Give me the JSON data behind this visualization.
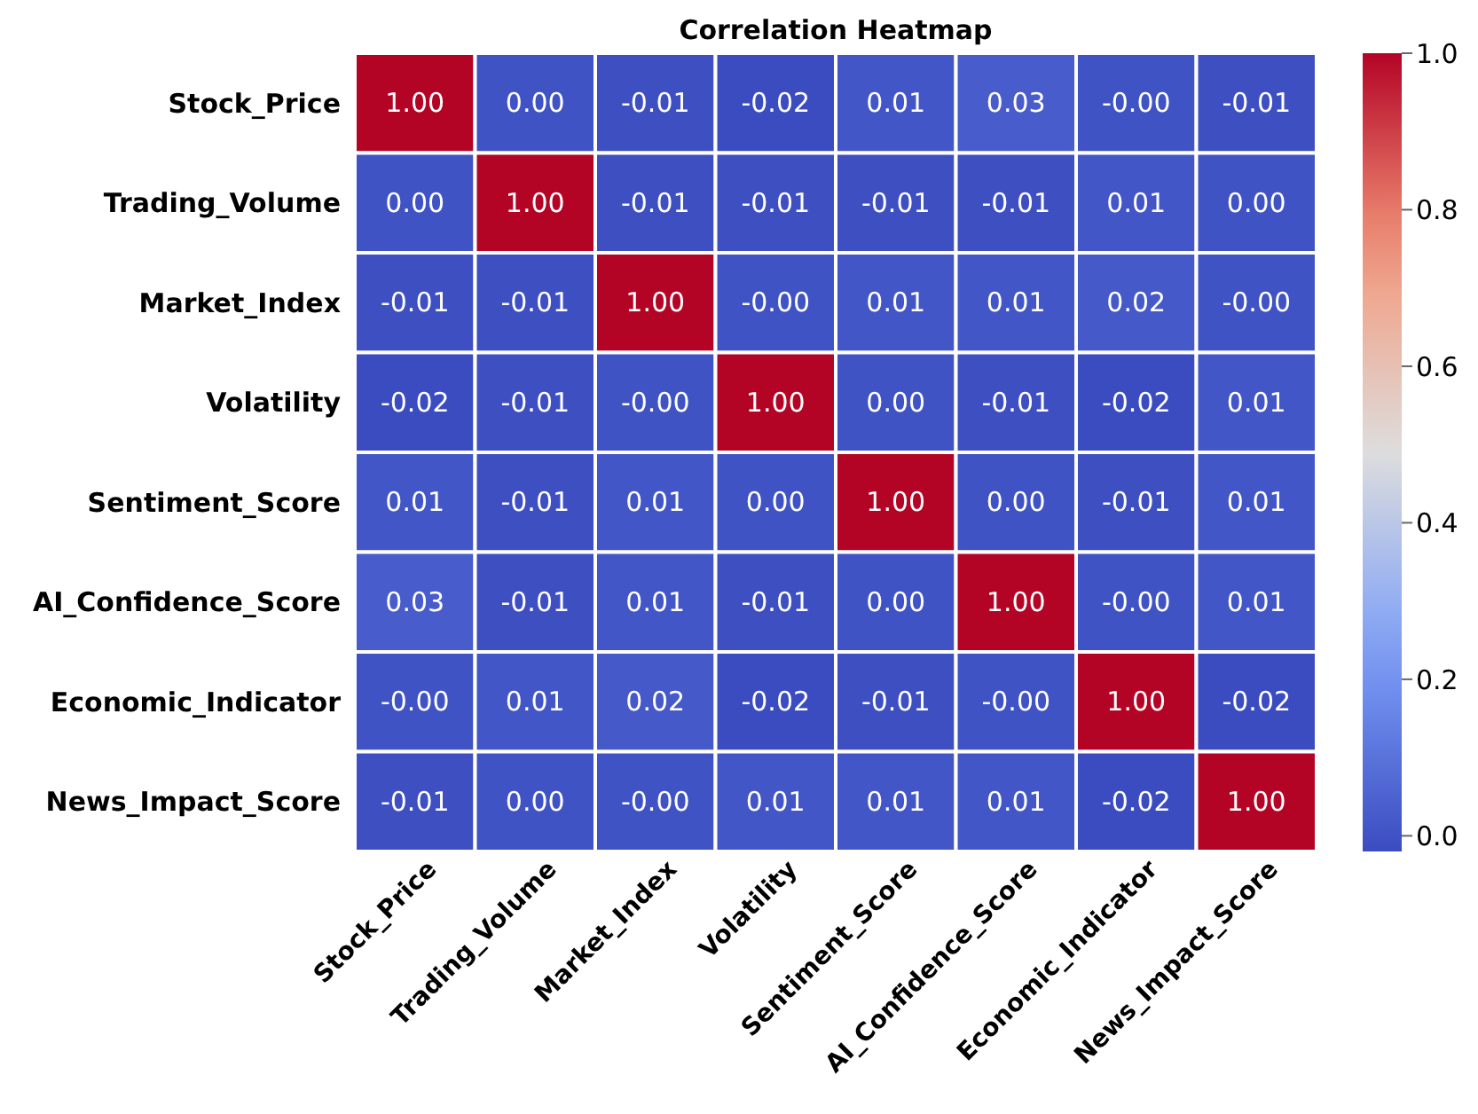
{
  "chart_data": {
    "type": "heatmap",
    "title": "Correlation Heatmap",
    "categories": [
      "Stock_Price",
      "Trading_Volume",
      "Market_Index",
      "Volatility",
      "Sentiment_Score",
      "AI_Confidence_Score",
      "Economic_Indicator",
      "News_Impact_Score"
    ],
    "y_categories": [
      "Stock_Price",
      "Trading_Volume",
      "Market_Index",
      "Volatility",
      "Sentiment_Score",
      "AI_Confidence_Score",
      "Economic_Indicator",
      "News_Impact_Score"
    ],
    "cells": [
      [
        1.0,
        0.0,
        -0.01,
        -0.02,
        0.01,
        0.03,
        0.0,
        -0.01
      ],
      [
        0.0,
        1.0,
        -0.01,
        -0.01,
        -0.01,
        -0.01,
        0.01,
        0.0
      ],
      [
        -0.01,
        -0.01,
        1.0,
        0.0,
        0.01,
        0.01,
        0.02,
        0.0
      ],
      [
        -0.02,
        -0.01,
        0.0,
        1.0,
        0.0,
        -0.01,
        -0.02,
        0.01
      ],
      [
        0.01,
        -0.01,
        0.01,
        0.0,
        1.0,
        0.0,
        -0.01,
        0.01
      ],
      [
        0.03,
        -0.01,
        0.01,
        -0.01,
        0.0,
        1.0,
        0.0,
        0.01
      ],
      [
        0.0,
        0.01,
        0.02,
        -0.02,
        -0.01,
        0.0,
        1.0,
        -0.02
      ],
      [
        -0.01,
        0.0,
        0.0,
        0.01,
        0.01,
        0.01,
        -0.02,
        1.0
      ]
    ],
    "cell_labels": [
      [
        "1.00",
        "0.00",
        "-0.01",
        "-0.02",
        "0.01",
        "0.03",
        "-0.00",
        "-0.01"
      ],
      [
        "0.00",
        "1.00",
        "-0.01",
        "-0.01",
        "-0.01",
        "-0.01",
        "0.01",
        "0.00"
      ],
      [
        "-0.01",
        "-0.01",
        "1.00",
        "-0.00",
        "0.01",
        "0.01",
        "0.02",
        "-0.00"
      ],
      [
        "-0.02",
        "-0.01",
        "-0.00",
        "1.00",
        "0.00",
        "-0.01",
        "-0.02",
        "0.01"
      ],
      [
        "0.01",
        "-0.01",
        "0.01",
        "0.00",
        "1.00",
        "0.00",
        "-0.01",
        "0.01"
      ],
      [
        "0.03",
        "-0.01",
        "0.01",
        "-0.01",
        "0.00",
        "1.00",
        "-0.00",
        "0.01"
      ],
      [
        "-0.00",
        "0.01",
        "0.02",
        "-0.02",
        "-0.01",
        "-0.00",
        "1.00",
        "-0.02"
      ],
      [
        "-0.01",
        "0.00",
        "-0.00",
        "0.01",
        "0.01",
        "0.01",
        "-0.02",
        "1.00"
      ]
    ],
    "clim": [
      -0.02,
      1.0
    ],
    "cticks": [
      {
        "value": 0,
        "label": "0.0"
      },
      {
        "value": 0.2,
        "label": "0.2"
      },
      {
        "value": 0.4,
        "label": "0.4"
      },
      {
        "value": 0.6,
        "label": "0.6"
      },
      {
        "value": 0.8,
        "label": "0.8"
      },
      {
        "value": 1.0,
        "label": "1.0"
      }
    ]
  }
}
